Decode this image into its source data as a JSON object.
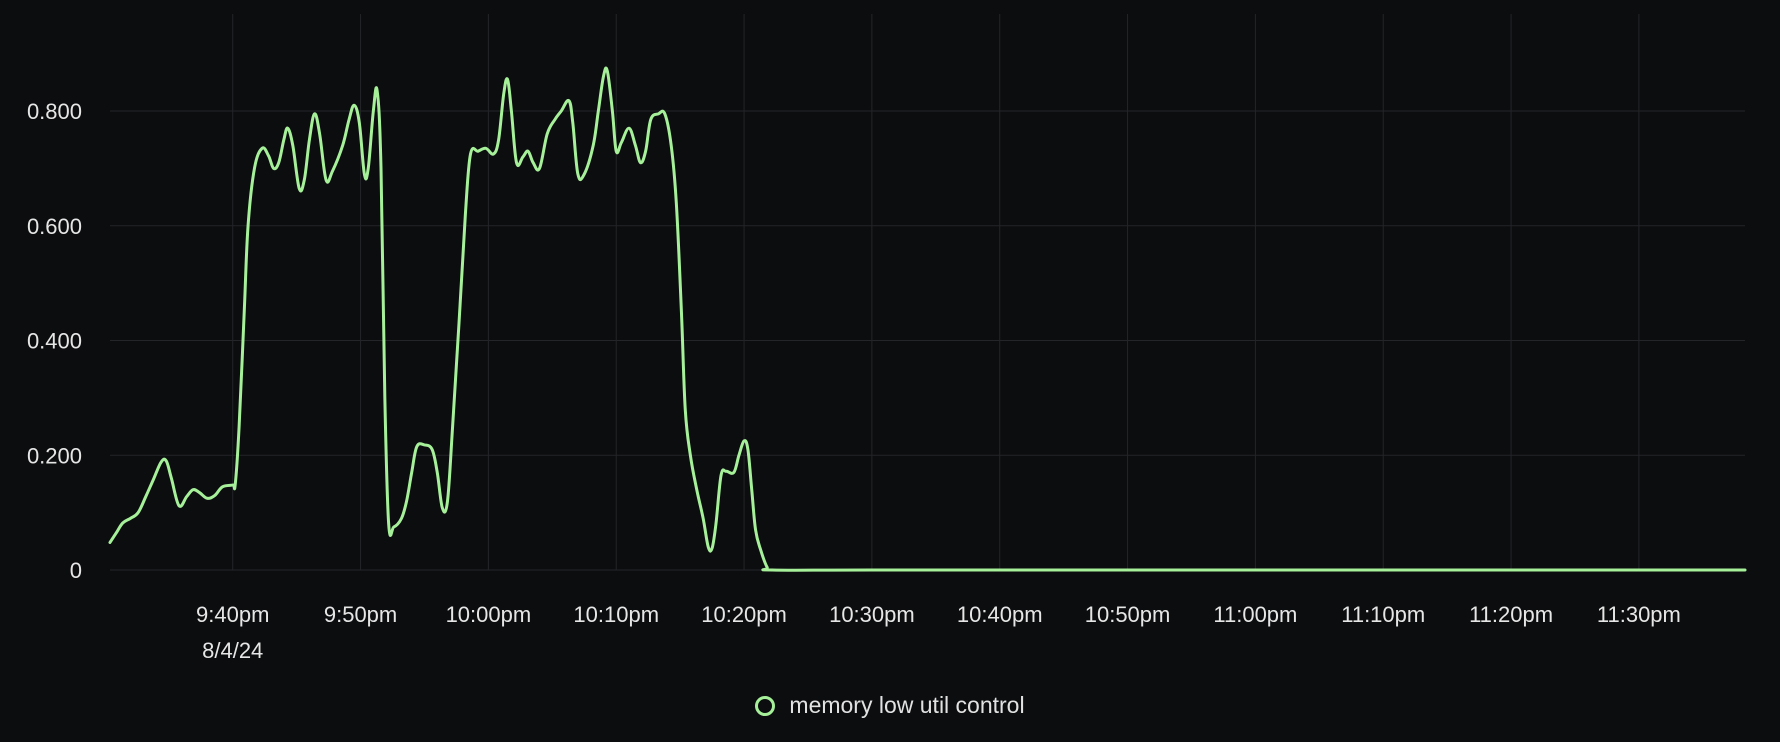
{
  "colors": {
    "background": "#0c0d0f",
    "gridline": "#232528",
    "axis_text": "#e6e6e6",
    "series": "#a6f09a"
  },
  "chart_data": {
    "type": "line",
    "title": "",
    "xlabel": "",
    "ylabel": "",
    "x_range_minutes": [
      9.33,
      24.0
    ],
    "x_unit": "minutes after 9:30pm 8/4/24",
    "ylim": [
      0,
      0.9
    ],
    "grid": true,
    "legend_position": "bottom-center",
    "x_ticks": [
      {
        "x": 10,
        "label": "9:40pm",
        "sublabel": "8/4/24"
      },
      {
        "x": 20,
        "label": "9:50pm",
        "sublabel": ""
      },
      {
        "x": 30,
        "label": "10:00pm",
        "sublabel": ""
      },
      {
        "x": 40,
        "label": "10:10pm",
        "sublabel": ""
      },
      {
        "x": 50,
        "label": "10:20pm",
        "sublabel": ""
      },
      {
        "x": 60,
        "label": "10:30pm",
        "sublabel": ""
      },
      {
        "x": 70,
        "label": "10:40pm",
        "sublabel": ""
      },
      {
        "x": 80,
        "label": "10:50pm",
        "sublabel": ""
      },
      {
        "x": 90,
        "label": "11:00pm",
        "sublabel": ""
      },
      {
        "x": 100,
        "label": "11:10pm",
        "sublabel": ""
      },
      {
        "x": 110,
        "label": "11:20pm",
        "sublabel": ""
      },
      {
        "x": 120,
        "label": "11:30pm",
        "sublabel": ""
      }
    ],
    "y_ticks": [
      {
        "y": 0,
        "label": "0"
      },
      {
        "y": 0.2,
        "label": "0.200"
      },
      {
        "y": 0.4,
        "label": "0.400"
      },
      {
        "y": 0.6,
        "label": "0.600"
      },
      {
        "y": 0.8,
        "label": "0.800"
      }
    ],
    "series": [
      {
        "name": "memory low util control",
        "color": "#a6f09a",
        "points": [
          [
            0.4,
            0.048
          ],
          [
            0.9,
            0.065
          ],
          [
            1.4,
            0.082
          ],
          [
            2.0,
            0.09
          ],
          [
            2.6,
            0.1
          ],
          [
            3.2,
            0.128
          ],
          [
            3.8,
            0.158
          ],
          [
            4.4,
            0.188
          ],
          [
            4.8,
            0.19
          ],
          [
            5.2,
            0.16
          ],
          [
            5.8,
            0.112
          ],
          [
            6.4,
            0.128
          ],
          [
            6.9,
            0.14
          ],
          [
            7.4,
            0.135
          ],
          [
            8.0,
            0.125
          ],
          [
            8.6,
            0.13
          ],
          [
            9.2,
            0.145
          ],
          [
            10.0,
            0.148
          ],
          [
            10.2,
            0.15
          ],
          [
            10.5,
            0.25
          ],
          [
            10.9,
            0.45
          ],
          [
            11.2,
            0.6
          ],
          [
            11.7,
            0.7
          ],
          [
            12.3,
            0.735
          ],
          [
            12.8,
            0.722
          ],
          [
            13.2,
            0.7
          ],
          [
            13.6,
            0.71
          ],
          [
            14.0,
            0.75
          ],
          [
            14.3,
            0.77
          ],
          [
            14.7,
            0.74
          ],
          [
            15.2,
            0.665
          ],
          [
            15.6,
            0.68
          ],
          [
            16.0,
            0.75
          ],
          [
            16.4,
            0.795
          ],
          [
            16.8,
            0.76
          ],
          [
            17.3,
            0.68
          ],
          [
            17.8,
            0.695
          ],
          [
            18.6,
            0.74
          ],
          [
            19.1,
            0.785
          ],
          [
            19.5,
            0.81
          ],
          [
            19.9,
            0.78
          ],
          [
            20.3,
            0.69
          ],
          [
            20.6,
            0.7
          ],
          [
            21.0,
            0.8
          ],
          [
            21.3,
            0.835
          ],
          [
            21.6,
            0.7
          ],
          [
            21.9,
            0.3
          ],
          [
            22.2,
            0.08
          ],
          [
            22.6,
            0.075
          ],
          [
            23.2,
            0.09
          ],
          [
            23.6,
            0.12
          ],
          [
            24.0,
            0.17
          ],
          [
            24.4,
            0.215
          ],
          [
            25.0,
            0.218
          ],
          [
            25.6,
            0.21
          ],
          [
            26.0,
            0.17
          ],
          [
            26.4,
            0.108
          ],
          [
            26.8,
            0.12
          ],
          [
            27.2,
            0.25
          ],
          [
            27.7,
            0.43
          ],
          [
            28.2,
            0.62
          ],
          [
            28.6,
            0.725
          ],
          [
            29.2,
            0.73
          ],
          [
            29.8,
            0.735
          ],
          [
            30.4,
            0.725
          ],
          [
            30.8,
            0.75
          ],
          [
            31.2,
            0.83
          ],
          [
            31.5,
            0.855
          ],
          [
            31.8,
            0.8
          ],
          [
            32.2,
            0.71
          ],
          [
            32.7,
            0.72
          ],
          [
            33.1,
            0.73
          ],
          [
            33.5,
            0.71
          ],
          [
            34.0,
            0.7
          ],
          [
            34.6,
            0.76
          ],
          [
            35.2,
            0.785
          ],
          [
            35.7,
            0.8
          ],
          [
            36.3,
            0.818
          ],
          [
            36.6,
            0.78
          ],
          [
            37.0,
            0.69
          ],
          [
            37.5,
            0.69
          ],
          [
            38.2,
            0.74
          ],
          [
            38.6,
            0.8
          ],
          [
            39.0,
            0.86
          ],
          [
            39.3,
            0.87
          ],
          [
            39.7,
            0.8
          ],
          [
            40.0,
            0.73
          ],
          [
            40.4,
            0.745
          ],
          [
            41.0,
            0.77
          ],
          [
            41.5,
            0.74
          ],
          [
            41.9,
            0.71
          ],
          [
            42.3,
            0.73
          ],
          [
            42.7,
            0.785
          ],
          [
            43.3,
            0.795
          ],
          [
            43.8,
            0.795
          ],
          [
            44.3,
            0.74
          ],
          [
            44.7,
            0.64
          ],
          [
            45.1,
            0.45
          ],
          [
            45.4,
            0.28
          ],
          [
            45.8,
            0.2
          ],
          [
            46.3,
            0.14
          ],
          [
            46.8,
            0.09
          ],
          [
            47.2,
            0.04
          ],
          [
            47.5,
            0.038
          ],
          [
            47.8,
            0.08
          ],
          [
            48.2,
            0.165
          ],
          [
            48.6,
            0.172
          ],
          [
            49.2,
            0.17
          ],
          [
            49.6,
            0.2
          ],
          [
            50.0,
            0.225
          ],
          [
            50.3,
            0.21
          ],
          [
            50.6,
            0.14
          ],
          [
            50.9,
            0.07
          ],
          [
            51.3,
            0.035
          ],
          [
            51.8,
            0.005
          ],
          [
            52.2,
            0.0
          ],
          [
            60,
            0.0
          ],
          [
            80,
            0.0
          ],
          [
            100,
            0.0
          ],
          [
            120,
            0.0
          ],
          [
            128.3,
            0.0
          ]
        ]
      }
    ]
  },
  "legend": {
    "items": [
      {
        "label": "memory low util control",
        "color": "#a6f09a"
      }
    ]
  }
}
